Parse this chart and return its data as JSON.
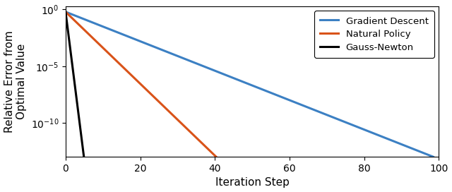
{
  "xlabel": "Iteration Step",
  "ylabel": "Relative Error from\nOptimal Value",
  "xlim": [
    0,
    100
  ],
  "ylim": [
    1e-13,
    2.0
  ],
  "x_ticks": [
    0,
    20,
    40,
    60,
    80,
    100
  ],
  "y_ticks": [
    1.0,
    1e-05,
    1e-10
  ],
  "gd_color": "#3C80C3",
  "np_color": "#D95319",
  "gn_color": "#000000",
  "gd_label": "Gradient Descent",
  "np_label": "Natural Policy",
  "gn_label": "Gauss-Newton",
  "start_val": 0.62,
  "gd_rate": 0.299,
  "np_rate": 0.73,
  "gn_rate": 6.0,
  "clip_floor": 1e-13,
  "line_width": 2.2,
  "legend_fontsize": 9.5,
  "axis_label_fontsize": 11,
  "tick_fontsize": 10
}
